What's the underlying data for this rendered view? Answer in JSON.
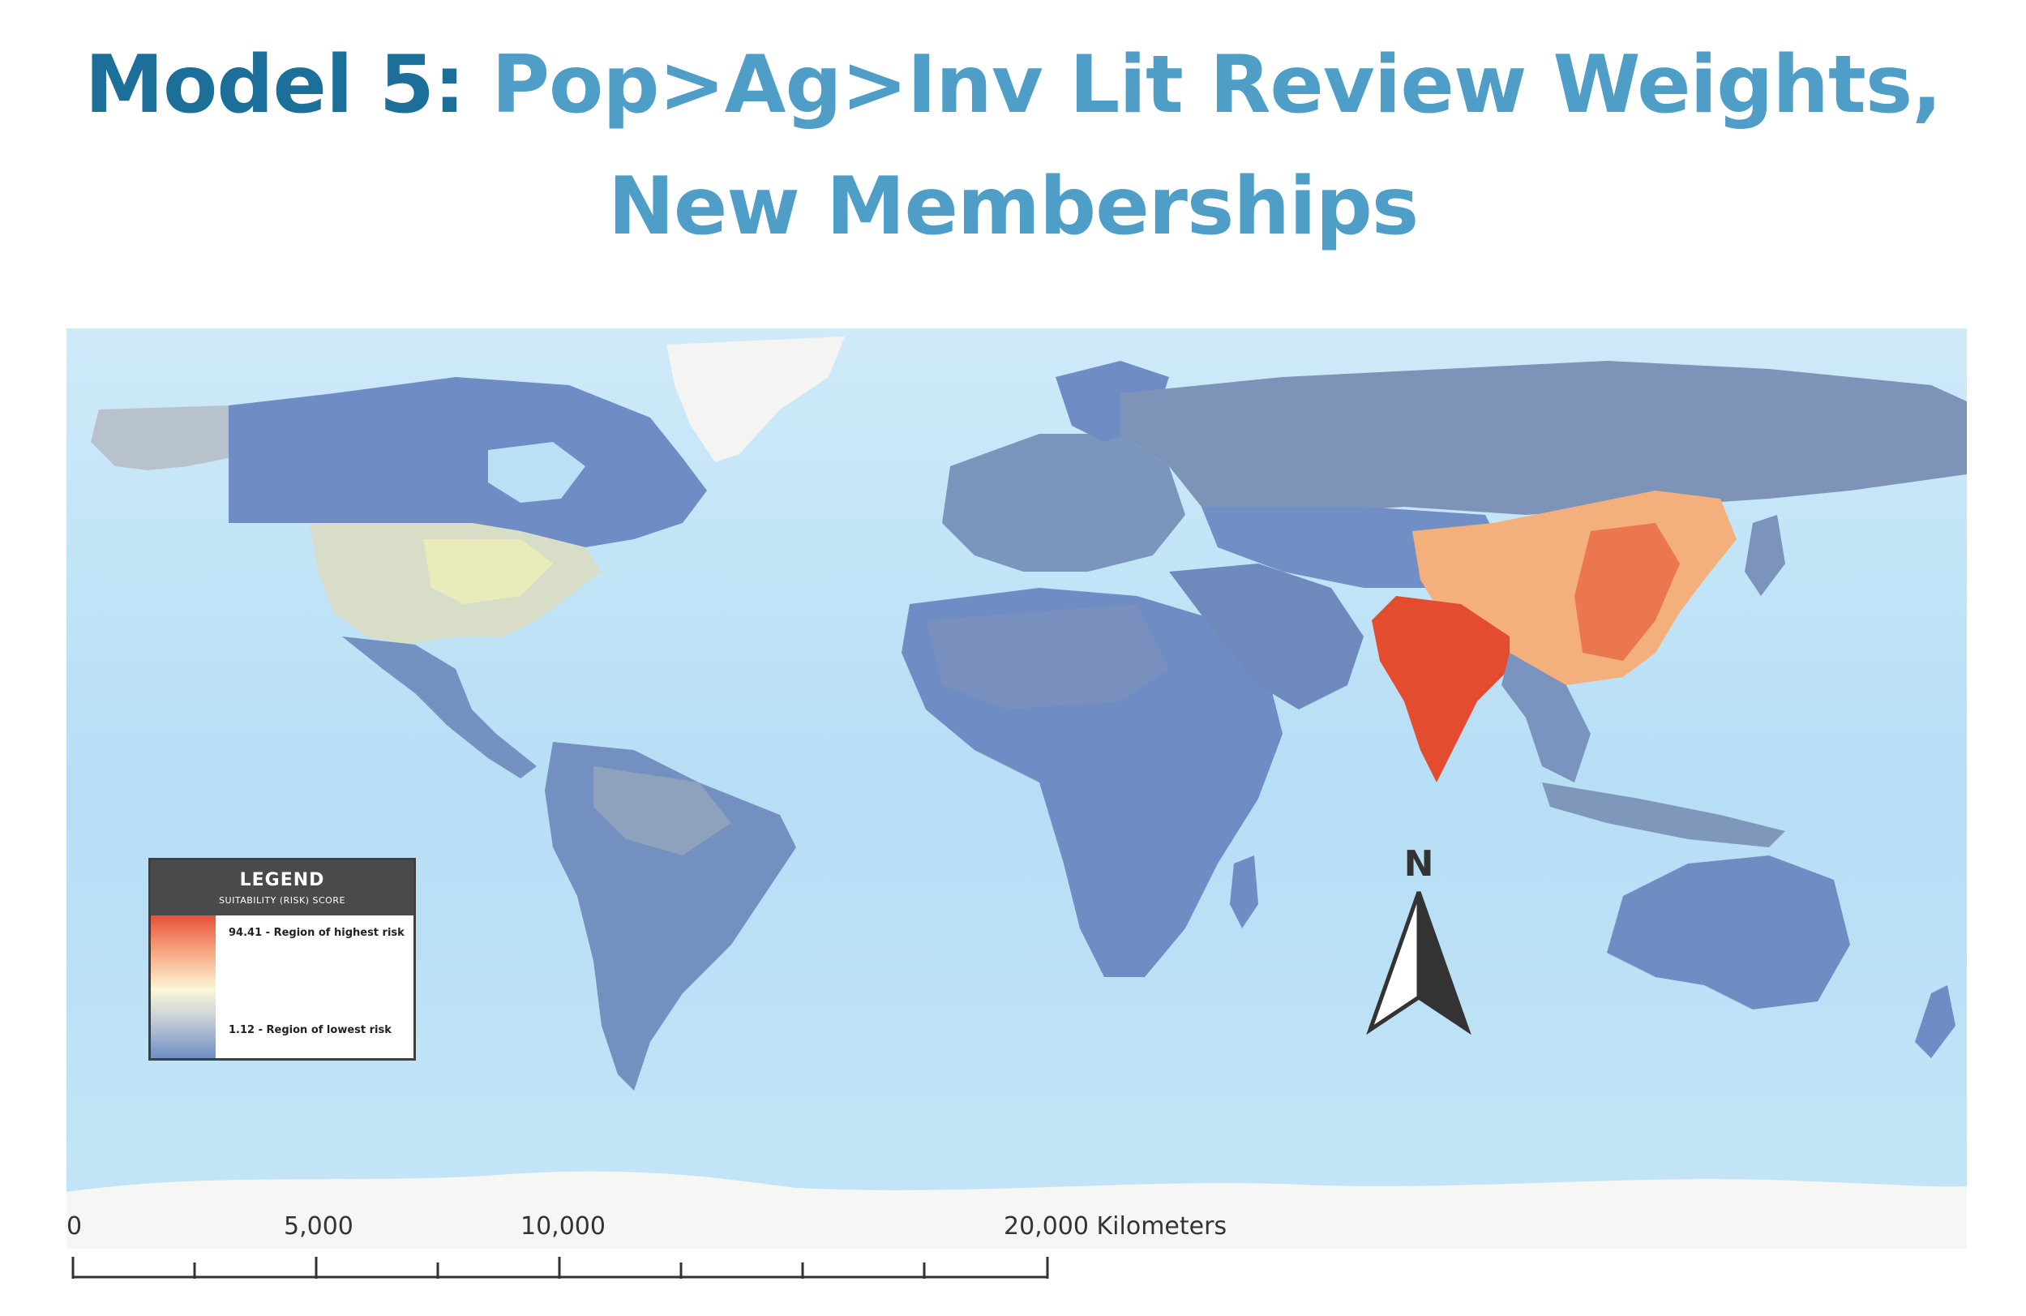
{
  "title": {
    "lead": "Model 5:",
    "rest_line1": " Pop>Ag>Inv Lit Review Weights,",
    "rest_line2": "New Memberships"
  },
  "legend": {
    "title": "LEGEND",
    "subtitle": "SUITABILITY (RISK) SCORE",
    "high_label": "94.41 - Region of highest risk",
    "low_label": "1.12 - Region of lowest risk",
    "high_value": 94.41,
    "low_value": 1.12,
    "colors": {
      "high": "#e8503a",
      "mid": "#fbf7d8",
      "low": "#6d8fc4"
    }
  },
  "north_arrow": {
    "label": "N"
  },
  "scale_bar": {
    "labels": [
      "0",
      "5,000",
      "10,000",
      "20,000 Kilometers"
    ],
    "unit": "Kilometers"
  },
  "colors": {
    "ocean": "#b9e2f7",
    "land_low": "#6f8dc2",
    "land_mid": "#c9cfd6",
    "land_warm": "#f6b27d",
    "land_hot": "#e44d2f",
    "ice": "#f7f7f5"
  }
}
